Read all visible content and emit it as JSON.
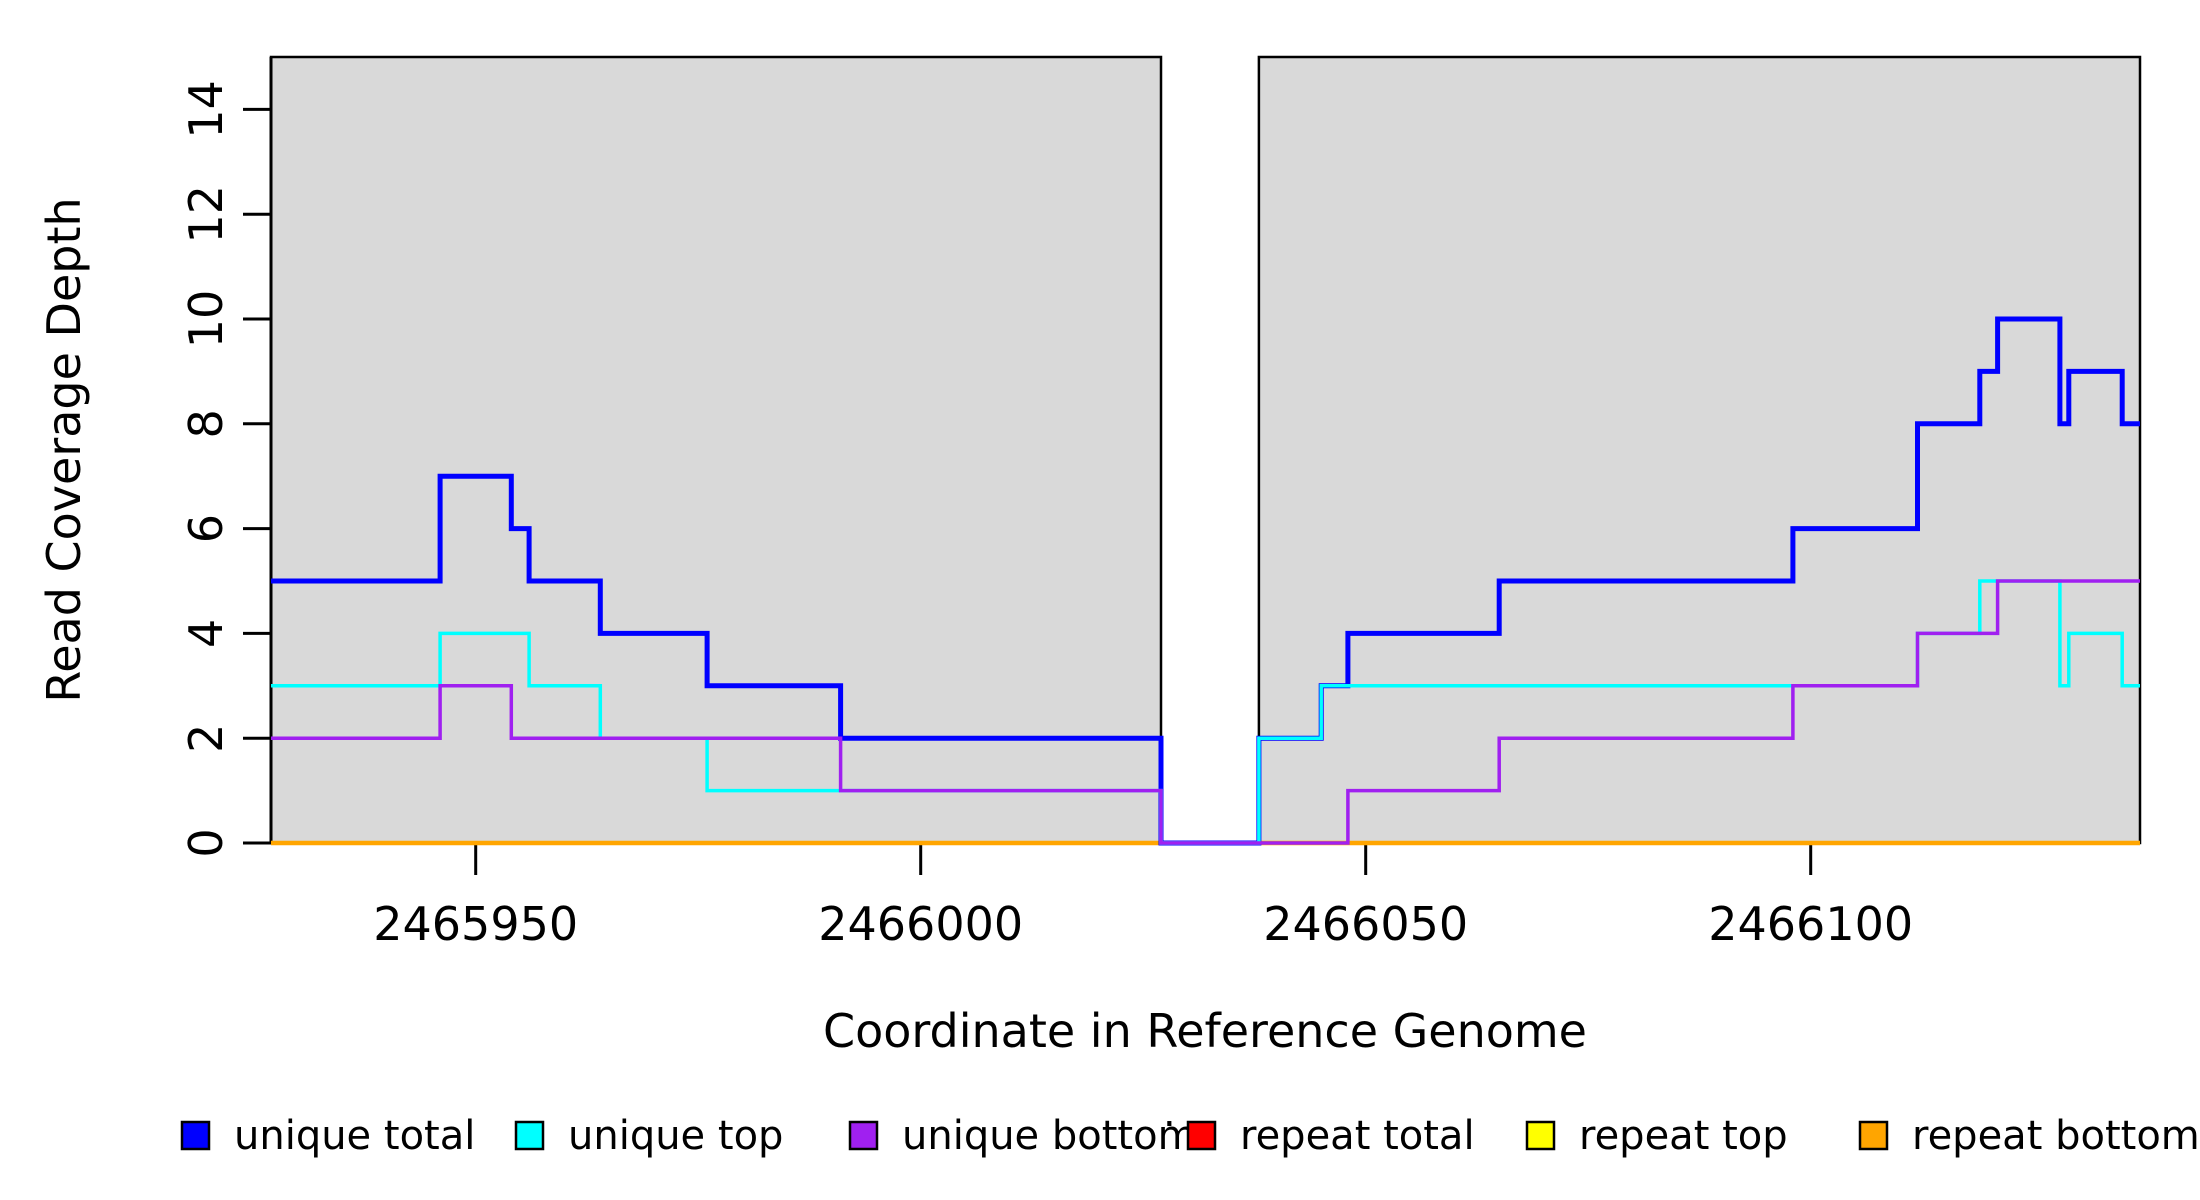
{
  "chart_data": {
    "type": "line",
    "subtype": "step",
    "title": "",
    "xlabel": "Coordinate in Reference Genome",
    "ylabel": "Read Coverage Depth",
    "xlim": [
      2465927,
      2466137
    ],
    "ylim": [
      0,
      15
    ],
    "x_ticks": [
      2465950,
      2466000,
      2466050,
      2466100
    ],
    "y_ticks": [
      0,
      2,
      4,
      6,
      8,
      10,
      12,
      14
    ],
    "grid": false,
    "legend_position": "bottom",
    "panel_color": "#ffffff",
    "shaded_regions": [
      {
        "x0": 2465927,
        "x1": 2466027,
        "color": "#d9d9d9",
        "border": "#000000"
      },
      {
        "x0": 2466038,
        "x1": 2466137,
        "color": "#d9d9d9",
        "border": "#000000"
      }
    ],
    "series": [
      {
        "name": "repeat total",
        "color": "#ff0000",
        "width": 3,
        "steps": [
          [
            2465927,
            0
          ]
        ]
      },
      {
        "name": "repeat top",
        "color": "#ffff00",
        "width": 3,
        "steps": [
          [
            2465927,
            0
          ]
        ]
      },
      {
        "name": "repeat bottom",
        "color": "#ffa500",
        "width": 4.5,
        "steps": [
          [
            2465927,
            0
          ]
        ]
      },
      {
        "name": "unique total",
        "color": "#0000ff",
        "width": 5,
        "steps": [
          [
            2465927,
            5
          ],
          [
            2465946,
            7
          ],
          [
            2465954,
            6
          ],
          [
            2465956,
            5
          ],
          [
            2465964,
            4
          ],
          [
            2465976,
            3
          ],
          [
            2465991,
            2
          ],
          [
            2466027,
            0
          ],
          [
            2466038,
            2
          ],
          [
            2466045,
            3
          ],
          [
            2466048,
            4
          ],
          [
            2466065,
            5
          ],
          [
            2466098,
            6
          ],
          [
            2466112,
            8
          ],
          [
            2466119,
            9
          ],
          [
            2466121,
            10
          ],
          [
            2466128,
            8
          ],
          [
            2466129,
            9
          ],
          [
            2466135,
            8
          ]
        ]
      },
      {
        "name": "unique top",
        "color": "#00ffff",
        "width": 3.5,
        "steps": [
          [
            2465927,
            3
          ],
          [
            2465946,
            4
          ],
          [
            2465956,
            3
          ],
          [
            2465964,
            2
          ],
          [
            2465976,
            1
          ],
          [
            2466027,
            0
          ],
          [
            2466038,
            2
          ],
          [
            2466045,
            3
          ],
          [
            2466112,
            4
          ],
          [
            2466119,
            5
          ],
          [
            2466128,
            3
          ],
          [
            2466129,
            4
          ],
          [
            2466135,
            3
          ]
        ]
      },
      {
        "name": "unique bottom",
        "color": "#a020f0",
        "width": 3.5,
        "steps": [
          [
            2465927,
            2
          ],
          [
            2465946,
            3
          ],
          [
            2465954,
            2
          ],
          [
            2465991,
            1
          ],
          [
            2466027,
            0
          ],
          [
            2466048,
            1
          ],
          [
            2466065,
            2
          ],
          [
            2466098,
            3
          ],
          [
            2466112,
            4
          ],
          [
            2466121,
            5
          ]
        ]
      }
    ]
  },
  "legend": {
    "items": [
      {
        "label": "unique total",
        "color": "#0000ff"
      },
      {
        "label": "unique top",
        "color": "#00ffff"
      },
      {
        "label": "unique bottom",
        "color": "#a020f0"
      },
      {
        "label": "repeat total",
        "color": "#ff0000"
      },
      {
        "label": "repeat top",
        "color": "#ffff00"
      },
      {
        "label": "repeat bottom",
        "color": "#ffa500"
      }
    ],
    "stray_mark": "."
  }
}
